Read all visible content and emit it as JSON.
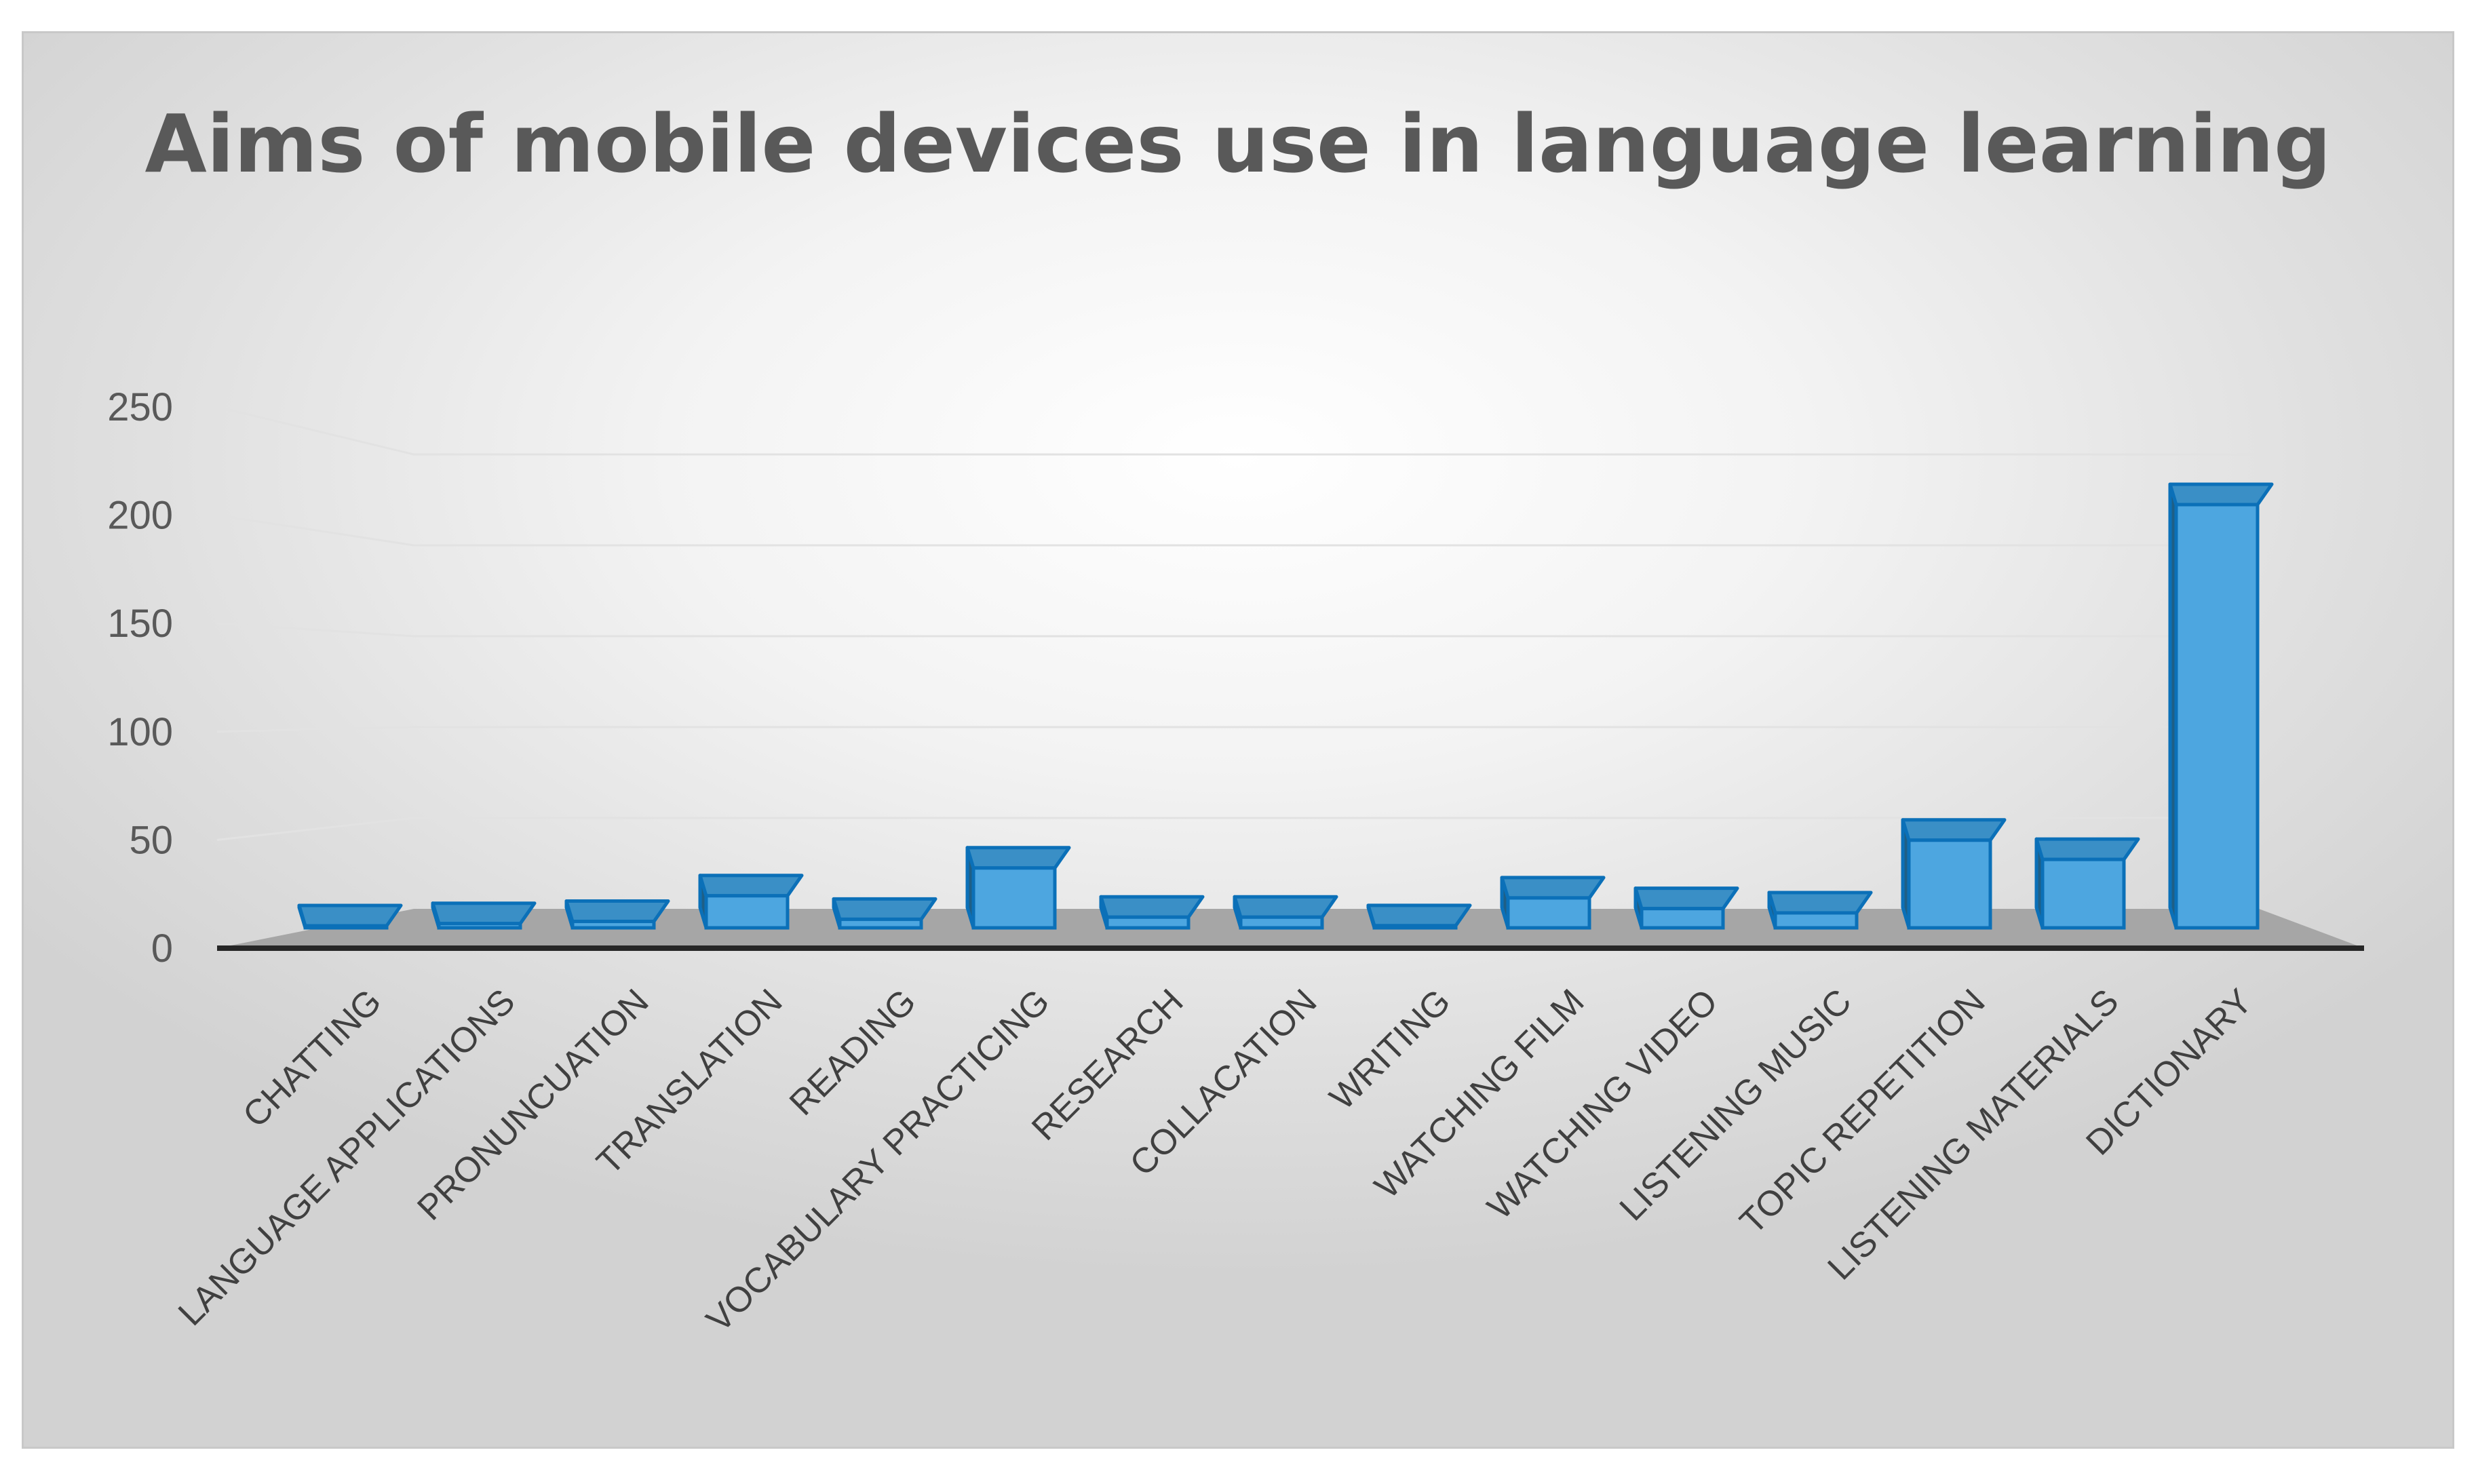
{
  "chart_data": {
    "type": "bar",
    "title": "Aims of mobile devices use in language learning",
    "xlabel": "",
    "ylabel": "",
    "ylim": [
      0,
      250
    ],
    "y_ticks": [
      0,
      50,
      100,
      150,
      200,
      250
    ],
    "grid": true,
    "categories": [
      "CHATTING",
      "LANGUAGE APPLICATIONS",
      "PRONUNCUATION",
      "TRANSLATION",
      "READING",
      "VOCABULARY PRACTICING",
      "RESEARCH",
      "COLLACATION",
      "WRITING",
      "WATCHING FILM",
      "WATCHING VIDEO",
      "LISTENING MUSIC",
      "TOPIC REPETITION",
      "LISTENING MATERIALS",
      "DICTIONARY"
    ],
    "values": [
      0,
      2,
      3,
      15,
      4,
      28,
      5,
      5,
      1,
      14,
      9,
      7,
      41,
      32,
      198
    ],
    "colors": {
      "front": "#4da6e0",
      "top": "#3a8fc6",
      "side": "#1f5f86",
      "edge": "#0b70b8",
      "floor": "#a6a6a6",
      "axis": "#262626",
      "grid": "#e2e2e2",
      "tick_text": "#595959",
      "category_text": "#404040",
      "title_text": "#595959"
    }
  }
}
